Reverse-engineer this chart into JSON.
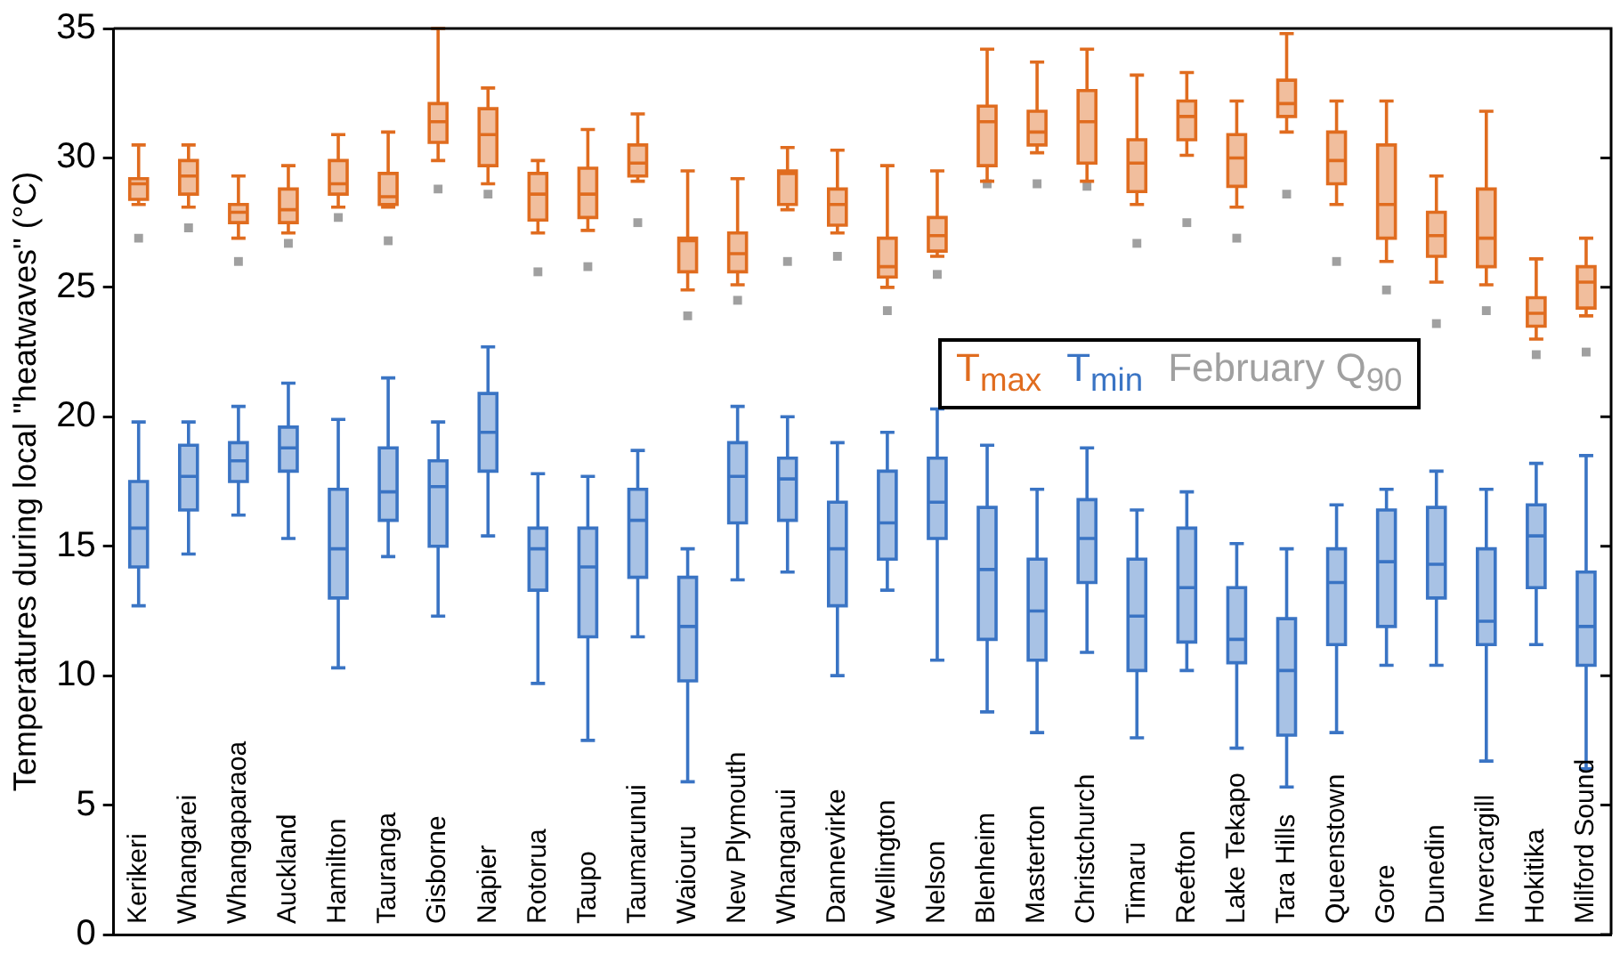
{
  "chart_data": {
    "type": "box",
    "ylabel": "Temperatures during local \"heatwaves\" (°C)",
    "categories": [
      "Kerikeri",
      "Whangarei",
      "Whangaparaoa",
      "Auckland",
      "Hamilton",
      "Tauranga",
      "Gisborne",
      "Napier",
      "Rotorua",
      "Taupo",
      "Taumarunui",
      "Waiouru",
      "New Plymouth",
      "Whanganui",
      "Dannevirke",
      "Wellington",
      "Nelson",
      "Blenheim",
      "Masterton",
      "Christchurch",
      "Timaru",
      "Reefton",
      "Lake Tekapo",
      "Tara Hills",
      "Queenstown",
      "Gore",
      "Dunedin",
      "Invercargill",
      "Hokitika",
      "Milford Sound"
    ],
    "ylim": [
      0,
      35
    ],
    "yticks": [
      0,
      5,
      10,
      15,
      20,
      25,
      30,
      35
    ],
    "grid": false,
    "legend": "right",
    "series": [
      {
        "name": "T$_{max}$",
        "color": "#e06c1f",
        "boxes": [
          {
            "low": 28.2,
            "q1": 28.4,
            "median": 29.0,
            "q3": 29.2,
            "high": 30.5
          },
          {
            "low": 28.1,
            "q1": 28.6,
            "median": 29.3,
            "q3": 29.9,
            "high": 30.5
          },
          {
            "low": 26.9,
            "q1": 27.5,
            "median": 27.9,
            "q3": 28.2,
            "high": 29.3
          },
          {
            "low": 27.1,
            "q1": 27.5,
            "median": 28.0,
            "q3": 28.8,
            "high": 29.7
          },
          {
            "low": 28.1,
            "q1": 28.6,
            "median": 29.0,
            "q3": 29.9,
            "high": 30.9
          },
          {
            "low": 28.1,
            "q1": 28.2,
            "median": 28.5,
            "q3": 29.4,
            "high": 31.0
          },
          {
            "low": 29.9,
            "q1": 30.6,
            "median": 31.4,
            "q3": 32.1,
            "high": 35.0
          },
          {
            "low": 29.0,
            "q1": 29.7,
            "median": 30.9,
            "q3": 31.9,
            "high": 32.7
          },
          {
            "low": 27.1,
            "q1": 27.6,
            "median": 28.6,
            "q3": 29.4,
            "high": 29.9
          },
          {
            "low": 27.2,
            "q1": 27.7,
            "median": 28.6,
            "q3": 29.6,
            "high": 31.1
          },
          {
            "low": 29.1,
            "q1": 29.3,
            "median": 29.8,
            "q3": 30.5,
            "high": 31.7
          },
          {
            "low": 24.9,
            "q1": 25.6,
            "median": 26.8,
            "q3": 26.9,
            "high": 29.5
          },
          {
            "low": 25.1,
            "q1": 25.6,
            "median": 26.3,
            "q3": 27.1,
            "high": 29.2
          },
          {
            "low": 28.0,
            "q1": 28.2,
            "median": 29.4,
            "q3": 29.5,
            "high": 30.4
          },
          {
            "low": 27.1,
            "q1": 27.4,
            "median": 28.2,
            "q3": 28.8,
            "high": 30.3
          },
          {
            "low": 25.0,
            "q1": 25.4,
            "median": 25.8,
            "q3": 26.9,
            "high": 29.7
          },
          {
            "low": 26.2,
            "q1": 26.4,
            "median": 27.0,
            "q3": 27.7,
            "high": 29.5
          },
          {
            "low": 29.1,
            "q1": 29.7,
            "median": 31.4,
            "q3": 32.0,
            "high": 34.2
          },
          {
            "low": 30.2,
            "q1": 30.5,
            "median": 31.0,
            "q3": 31.8,
            "high": 33.7
          },
          {
            "low": 29.1,
            "q1": 29.8,
            "median": 31.4,
            "q3": 32.6,
            "high": 34.2
          },
          {
            "low": 28.2,
            "q1": 28.7,
            "median": 29.8,
            "q3": 30.7,
            "high": 33.2
          },
          {
            "low": 30.1,
            "q1": 30.7,
            "median": 31.6,
            "q3": 32.2,
            "high": 33.3
          },
          {
            "low": 28.1,
            "q1": 28.9,
            "median": 30.0,
            "q3": 30.9,
            "high": 32.2
          },
          {
            "low": 31.0,
            "q1": 31.6,
            "median": 32.1,
            "q3": 33.0,
            "high": 34.8
          },
          {
            "low": 28.2,
            "q1": 29.0,
            "median": 29.9,
            "q3": 31.0,
            "high": 32.2
          },
          {
            "low": 26.0,
            "q1": 26.9,
            "median": 28.2,
            "q3": 30.5,
            "high": 32.2
          },
          {
            "low": 25.2,
            "q1": 26.2,
            "median": 27.0,
            "q3": 27.9,
            "high": 29.3
          },
          {
            "low": 25.1,
            "q1": 25.8,
            "median": 26.9,
            "q3": 28.8,
            "high": 31.8
          },
          {
            "low": 23.0,
            "q1": 23.5,
            "median": 24.0,
            "q3": 24.6,
            "high": 26.1
          },
          {
            "low": 23.9,
            "q1": 24.2,
            "median": 25.2,
            "q3": 25.8,
            "high": 26.9
          }
        ]
      },
      {
        "name": "T$_{min}$",
        "color": "#3a74c4",
        "boxes": [
          {
            "low": 12.7,
            "q1": 14.2,
            "median": 15.7,
            "q3": 17.5,
            "high": 19.8
          },
          {
            "low": 14.7,
            "q1": 16.4,
            "median": 17.7,
            "q3": 18.9,
            "high": 19.8
          },
          {
            "low": 16.2,
            "q1": 17.5,
            "median": 18.3,
            "q3": 19.0,
            "high": 20.4
          },
          {
            "low": 15.3,
            "q1": 17.9,
            "median": 18.8,
            "q3": 19.6,
            "high": 21.3
          },
          {
            "low": 10.3,
            "q1": 13.0,
            "median": 14.9,
            "q3": 17.2,
            "high": 19.9
          },
          {
            "low": 14.6,
            "q1": 16.0,
            "median": 17.1,
            "q3": 18.8,
            "high": 21.5
          },
          {
            "low": 12.3,
            "q1": 15.0,
            "median": 17.3,
            "q3": 18.3,
            "high": 19.8
          },
          {
            "low": 15.4,
            "q1": 17.9,
            "median": 19.4,
            "q3": 20.9,
            "high": 22.7
          },
          {
            "low": 9.7,
            "q1": 13.3,
            "median": 14.9,
            "q3": 15.7,
            "high": 17.8
          },
          {
            "low": 7.5,
            "q1": 11.5,
            "median": 14.2,
            "q3": 15.7,
            "high": 17.7
          },
          {
            "low": 11.5,
            "q1": 13.8,
            "median": 16.0,
            "q3": 17.2,
            "high": 18.7
          },
          {
            "low": 5.9,
            "q1": 9.8,
            "median": 11.9,
            "q3": 13.8,
            "high": 14.9
          },
          {
            "low": 13.7,
            "q1": 15.9,
            "median": 17.7,
            "q3": 19.0,
            "high": 20.4
          },
          {
            "low": 14.0,
            "q1": 16.0,
            "median": 17.6,
            "q3": 18.4,
            "high": 20.0
          },
          {
            "low": 10.0,
            "q1": 12.7,
            "median": 14.9,
            "q3": 16.7,
            "high": 19.0
          },
          {
            "low": 13.3,
            "q1": 14.5,
            "median": 15.9,
            "q3": 17.9,
            "high": 19.4
          },
          {
            "low": 10.6,
            "q1": 15.3,
            "median": 16.7,
            "q3": 18.4,
            "high": 20.3
          },
          {
            "low": 8.6,
            "q1": 11.4,
            "median": 14.1,
            "q3": 16.5,
            "high": 18.9
          },
          {
            "low": 7.8,
            "q1": 10.6,
            "median": 12.5,
            "q3": 14.5,
            "high": 17.2
          },
          {
            "low": 10.9,
            "q1": 13.6,
            "median": 15.3,
            "q3": 16.8,
            "high": 18.8
          },
          {
            "low": 7.6,
            "q1": 10.2,
            "median": 12.3,
            "q3": 14.5,
            "high": 16.4
          },
          {
            "low": 10.2,
            "q1": 11.3,
            "median": 13.4,
            "q3": 15.7,
            "high": 17.1
          },
          {
            "low": 7.2,
            "q1": 10.5,
            "median": 11.4,
            "q3": 13.4,
            "high": 15.1
          },
          {
            "low": 5.7,
            "q1": 7.7,
            "median": 10.2,
            "q3": 12.2,
            "high": 14.9
          },
          {
            "low": 7.8,
            "q1": 11.2,
            "median": 13.6,
            "q3": 14.9,
            "high": 16.6
          },
          {
            "low": 10.4,
            "q1": 11.9,
            "median": 14.4,
            "q3": 16.4,
            "high": 17.2
          },
          {
            "low": 10.4,
            "q1": 13.0,
            "median": 14.3,
            "q3": 16.5,
            "high": 17.9
          },
          {
            "low": 6.7,
            "q1": 11.2,
            "median": 12.1,
            "q3": 14.9,
            "high": 17.2
          },
          {
            "low": 11.2,
            "q1": 13.4,
            "median": 15.4,
            "q3": 16.6,
            "high": 18.2
          },
          {
            "low": 6.4,
            "q1": 10.4,
            "median": 11.9,
            "q3": 14.0,
            "high": 18.5
          }
        ]
      },
      {
        "name": "February Q$_{90}$",
        "type": "scatter",
        "color": "#a0a0a0",
        "marker": "square",
        "x": [
          "Kerikeri",
          "Whangarei",
          "Whangaparaoa",
          "Auckland",
          "Hamilton",
          "Tauranga",
          "Gisborne",
          "Napier",
          "Rotorua",
          "Taupo",
          "Taumarunui",
          "Waiouru",
          "New Plymouth",
          "Whanganui",
          "Dannevirke",
          "Wellington",
          "Nelson",
          "Blenheim",
          "Masterton",
          "Christchurch",
          "Timaru",
          "Reefton",
          "Lake Tekapo",
          "Tara Hills",
          "Queenstown",
          "Gore",
          "Dunedin",
          "Invercargill",
          "Hokitika",
          "Milford Sound"
        ],
        "values": [
          26.9,
          27.3,
          26.0,
          26.7,
          27.7,
          26.8,
          28.8,
          28.6,
          25.6,
          25.8,
          27.5,
          23.9,
          24.5,
          26.0,
          26.2,
          24.1,
          25.5,
          29.0,
          29.0,
          28.9,
          26.7,
          27.5,
          26.9,
          28.6,
          26.0,
          24.9,
          23.6,
          24.1,
          22.4,
          22.5
        ]
      }
    ]
  }
}
